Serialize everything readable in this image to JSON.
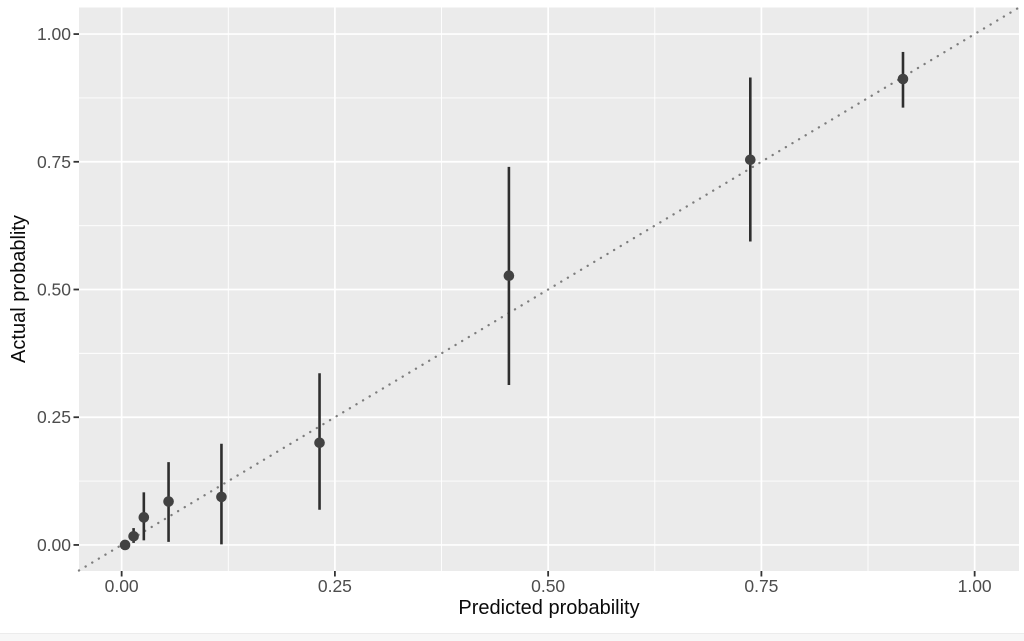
{
  "chart_data": {
    "type": "scatter",
    "subtype": "pointrange-calibration",
    "title": "",
    "xlabel": "Predicted probability",
    "ylabel": "Actual probablity",
    "xlim": [
      -0.05,
      1.052
    ],
    "ylim": [
      -0.051,
      1.052
    ],
    "x_tick_values": [
      0,
      0.25,
      0.5,
      0.75,
      1
    ],
    "x_tick_labels": [
      "0.00",
      "0.25",
      "0.50",
      "0.75",
      "1.00"
    ],
    "y_tick_values": [
      0,
      0.25,
      0.5,
      0.75,
      1
    ],
    "y_tick_labels": [
      "0.00",
      "0.25",
      "0.50",
      "0.75",
      "1.00"
    ],
    "x_minor_breaks": [
      0.125,
      0.375,
      0.625,
      0.875
    ],
    "y_minor_breaks": [
      0.125,
      0.375,
      0.625,
      0.875
    ],
    "grid": "major+minor",
    "legend_position": "none",
    "reference_line": {
      "kind": "identity",
      "linetype": "dotted"
    },
    "series": [
      {
        "name": "calibration-points",
        "points": [
          {
            "x": 0.004,
            "y": 0.0,
            "ymin": 0.0,
            "ymax": 0.005
          },
          {
            "x": 0.014,
            "y": 0.017,
            "ymin": 0.004,
            "ymax": 0.033
          },
          {
            "x": 0.026,
            "y": 0.054,
            "ymin": 0.009,
            "ymax": 0.103
          },
          {
            "x": 0.055,
            "y": 0.085,
            "ymin": 0.006,
            "ymax": 0.162
          },
          {
            "x": 0.117,
            "y": 0.094,
            "ymin": 0.001,
            "ymax": 0.198
          },
          {
            "x": 0.232,
            "y": 0.2,
            "ymin": 0.069,
            "ymax": 0.336
          },
          {
            "x": 0.454,
            "y": 0.527,
            "ymin": 0.313,
            "ymax": 0.74
          },
          {
            "x": 0.737,
            "y": 0.754,
            "ymin": 0.594,
            "ymax": 0.915
          },
          {
            "x": 0.916,
            "y": 0.912,
            "ymin": 0.856,
            "ymax": 0.965
          }
        ]
      }
    ],
    "colors": {
      "page_bg": "#FFFFFF",
      "panel_bg": "#EBEBEB",
      "grid": "#FFFFFF",
      "point": "#424242",
      "range_bar": "#2E2E2E",
      "ref_line": "#7D7D7D",
      "tick_mark": "#333333",
      "tick_label": "#4D4D4D",
      "axis_title": "#0A0A0A",
      "bottom_strip": "#F7F7F7"
    }
  }
}
